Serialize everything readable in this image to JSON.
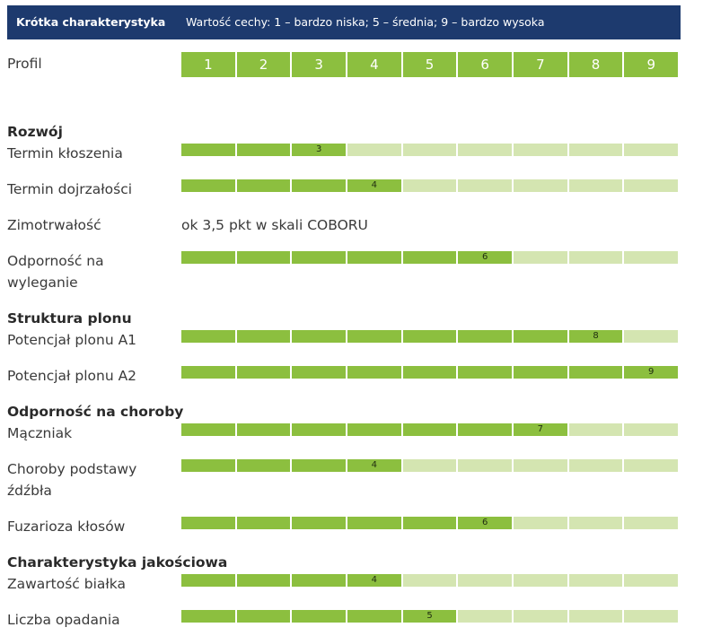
{
  "header": {
    "title": "Krótka charakterystyka",
    "legend": "Wartość cechy: 1 – bardzo niska; 5 – średnia; 9 – bardzo wysoka"
  },
  "profile": {
    "label": "Profil",
    "scale": [
      "1",
      "2",
      "3",
      "4",
      "5",
      "6",
      "7",
      "8",
      "9"
    ]
  },
  "sections": {
    "rozwoj": "Rozwój",
    "struktura": "Struktura plonu",
    "odpornosc": "Odporność na choroby",
    "jakosc": "Charakterystyka jakościowa"
  },
  "traits": [
    {
      "label": "Termin kłoszenia",
      "value": 3
    },
    {
      "label": "Termin dojrzałości",
      "value": 4
    },
    {
      "label": "Zimotrwałość",
      "text": "ok 3,5 pkt w skali COBORU"
    },
    {
      "label_lines": [
        "Odporność na",
        "wyleganie"
      ],
      "value": 6
    },
    {
      "label": "Potencjał plonu A1",
      "value": 8
    },
    {
      "label": "Potencjał plonu A2",
      "value": 9
    },
    {
      "label": "Mączniak",
      "value": 7
    },
    {
      "label_lines": [
        "Choroby podstawy",
        "źdźbła"
      ],
      "value": 4
    },
    {
      "label": "Fuzarioza kłosów",
      "value": 6
    },
    {
      "label": "Zawartość białka",
      "value": 4
    },
    {
      "label": "Liczba opadania",
      "value": 5
    }
  ],
  "colors": {
    "header_bg": "#1d3a6e",
    "filled": "#8cbf3f",
    "empty": "#d4e5b1"
  }
}
